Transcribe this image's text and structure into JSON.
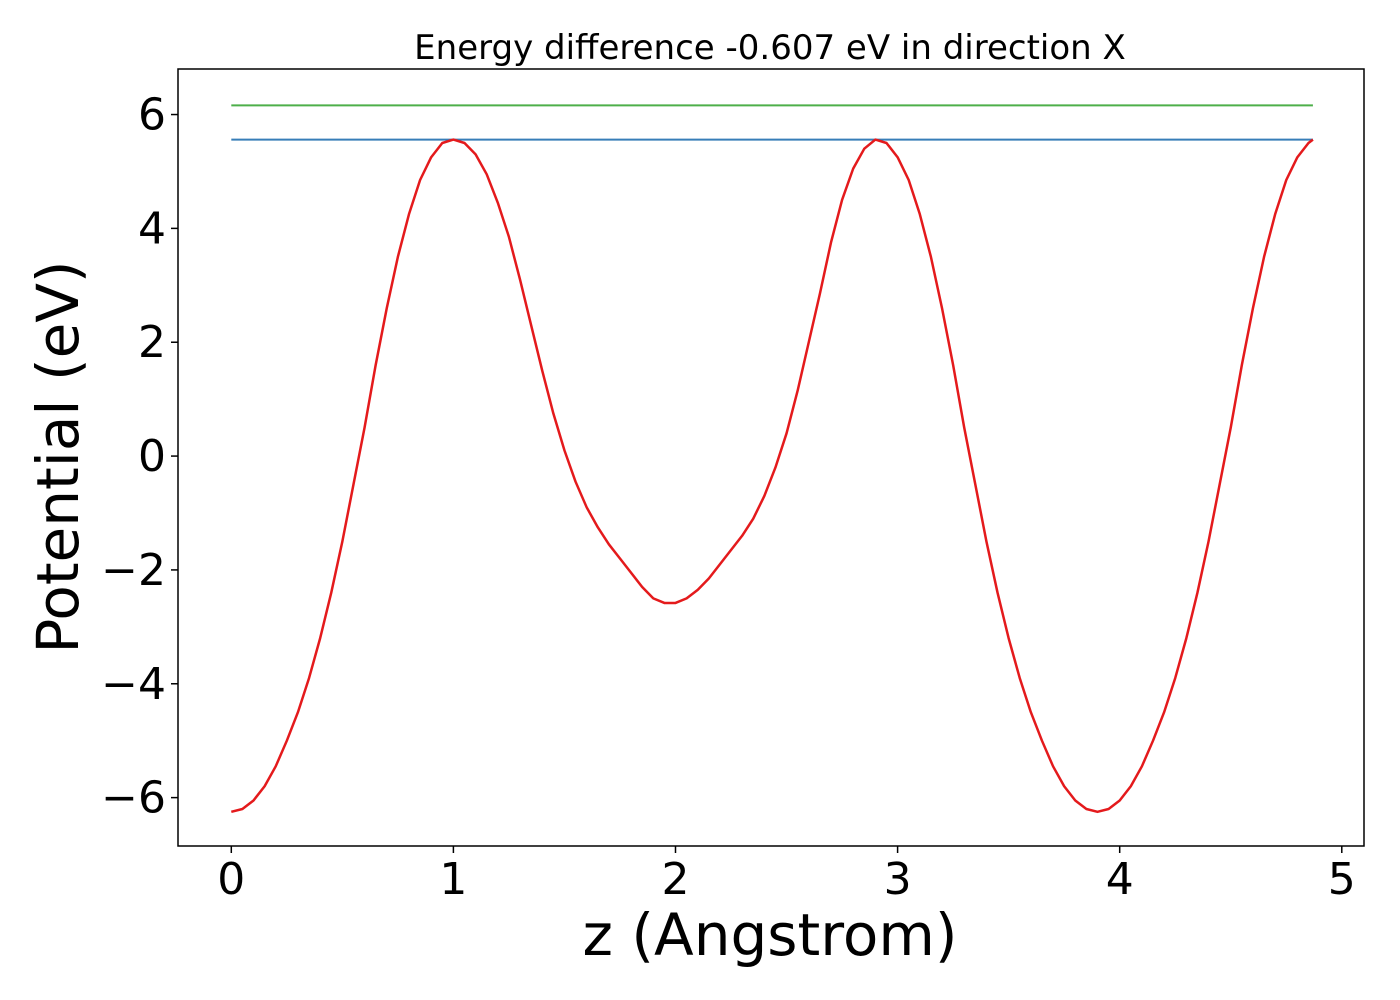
{
  "chart_data": {
    "type": "line",
    "title": "Energy difference -0.607 eV in direction X",
    "xlabel": "z (Angstrom)",
    "ylabel": "Potential (eV)",
    "xlim": [
      -0.24,
      5.1
    ],
    "ylim": [
      -6.85,
      6.8
    ],
    "x_ticks": [
      0,
      1,
      2,
      3,
      4,
      5
    ],
    "x_tick_labels": [
      "0",
      "1",
      "2",
      "3",
      "4",
      "5"
    ],
    "y_ticks": [
      -6,
      -4,
      -2,
      0,
      2,
      4,
      6
    ],
    "y_tick_labels": [
      "−6",
      "−4",
      "−2",
      "0",
      "2",
      "4",
      "6"
    ],
    "grid": false,
    "legend": "none",
    "series": [
      {
        "color": "#4daf4a",
        "x": [
          0,
          4.87
        ],
        "y": [
          6.16,
          6.16
        ]
      },
      {
        "color": "#377eb8",
        "x": [
          0,
          4.87
        ],
        "y": [
          5.56,
          5.56
        ]
      },
      {
        "color": "#e41a1c",
        "x": [
          0,
          0.05,
          0.1,
          0.15,
          0.2,
          0.25,
          0.3,
          0.35,
          0.4,
          0.45,
          0.5,
          0.55,
          0.6,
          0.65,
          0.7,
          0.75,
          0.8,
          0.85,
          0.9,
          0.95,
          1.0,
          1.05,
          1.1,
          1.15,
          1.2,
          1.25,
          1.3,
          1.35,
          1.4,
          1.45,
          1.5,
          1.55,
          1.6,
          1.65,
          1.7,
          1.75,
          1.8,
          1.85,
          1.9,
          1.95,
          2.0,
          2.05,
          2.1,
          2.15,
          2.2,
          2.25,
          2.3,
          2.35,
          2.4,
          2.45,
          2.5,
          2.55,
          2.6,
          2.65,
          2.7,
          2.75,
          2.8,
          2.85,
          2.9,
          2.95,
          3.0,
          3.05,
          3.1,
          3.15,
          3.2,
          3.25,
          3.3,
          3.35,
          3.4,
          3.45,
          3.5,
          3.55,
          3.6,
          3.65,
          3.7,
          3.75,
          3.8,
          3.85,
          3.9,
          3.95,
          4.0,
          4.05,
          4.1,
          4.15,
          4.2,
          4.25,
          4.3,
          4.35,
          4.4,
          4.45,
          4.5,
          4.55,
          4.6,
          4.65,
          4.7,
          4.75,
          4.8,
          4.85,
          4.87
        ],
        "y": [
          -6.25,
          -6.2,
          -6.05,
          -5.8,
          -5.45,
          -5.0,
          -4.5,
          -3.9,
          -3.2,
          -2.4,
          -1.5,
          -0.5,
          0.5,
          1.6,
          2.6,
          3.5,
          4.25,
          4.85,
          5.25,
          5.5,
          5.56,
          5.5,
          5.3,
          4.95,
          4.45,
          3.85,
          3.1,
          2.3,
          1.5,
          0.75,
          0.1,
          -0.45,
          -0.9,
          -1.25,
          -1.55,
          -1.8,
          -2.05,
          -2.3,
          -2.5,
          -2.58,
          -2.58,
          -2.5,
          -2.35,
          -2.15,
          -1.9,
          -1.65,
          -1.4,
          -1.1,
          -0.7,
          -0.2,
          0.4,
          1.15,
          2.0,
          2.85,
          3.75,
          4.5,
          5.05,
          5.4,
          5.56,
          5.5,
          5.25,
          4.85,
          4.25,
          3.5,
          2.6,
          1.6,
          0.5,
          -0.5,
          -1.5,
          -2.4,
          -3.2,
          -3.9,
          -4.5,
          -5.0,
          -5.45,
          -5.8,
          -6.05,
          -6.2,
          -6.25,
          -6.2,
          -6.05,
          -5.8,
          -5.45,
          -5.0,
          -4.5,
          -3.9,
          -3.2,
          -2.4,
          -1.5,
          -0.5,
          0.5,
          1.6,
          2.6,
          3.5,
          4.25,
          4.85,
          5.25,
          5.5,
          5.56
        ]
      }
    ]
  }
}
